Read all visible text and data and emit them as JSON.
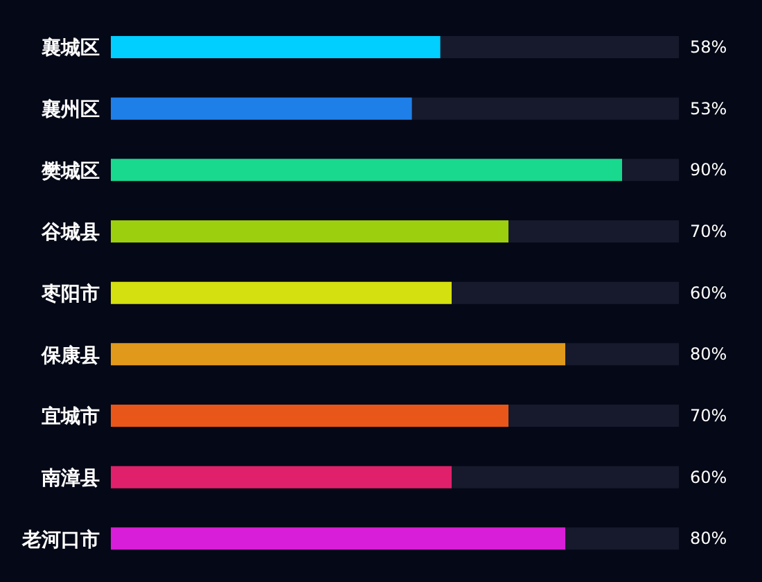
{
  "chart_data": {
    "type": "bar",
    "orientation": "horizontal",
    "categories": [
      "襄城区",
      "襄州区",
      "樊城区",
      "谷城县",
      "枣阳市",
      "保康县",
      "宜城市",
      "南漳县",
      "老河口市"
    ],
    "values": [
      58,
      53,
      90,
      70,
      60,
      80,
      70,
      60,
      80
    ],
    "colors": [
      "#00cfff",
      "#1f7fe8",
      "#18d98e",
      "#9ccf0e",
      "#d4e00f",
      "#e0991a",
      "#e8561a",
      "#e0206a",
      "#d81ed8"
    ],
    "value_labels": [
      "58%",
      "53%",
      "90%",
      "70%",
      "60%",
      "80%",
      "70%",
      "60%",
      "80%"
    ],
    "xlim": [
      0,
      100
    ],
    "tick_labels": "y"
  }
}
